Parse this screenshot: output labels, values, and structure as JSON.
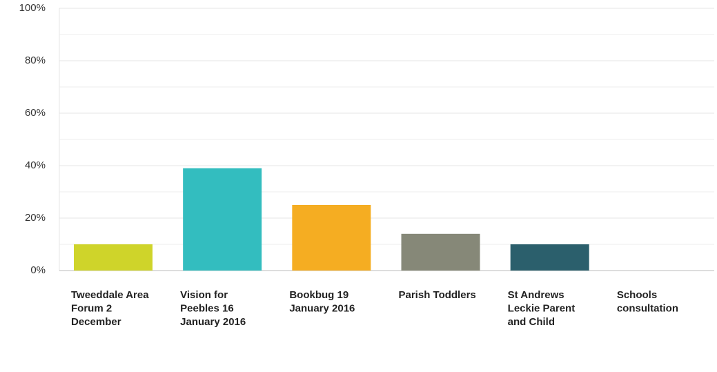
{
  "chart_data": {
    "type": "bar",
    "categories": [
      "Tweeddale Area Forum 2 December",
      "Vision for Peebles 16 January 2016",
      "Bookbug 19 January 2016",
      "Parish Toddlers",
      "St Andrews Leckie Parent and Child",
      "Schools consultation"
    ],
    "values": [
      10,
      39,
      25,
      14,
      10,
      0
    ],
    "colors": [
      "#cfd42a",
      "#33bdbf",
      "#f5ad22",
      "#868878",
      "#2b5f6c",
      "#9b9b9b"
    ],
    "ylim": [
      0,
      100
    ],
    "yticks": [
      {
        "value": 0,
        "label": "0%"
      },
      {
        "value": 20,
        "label": "20%"
      },
      {
        "value": 40,
        "label": "40%"
      },
      {
        "value": 60,
        "label": "60%"
      },
      {
        "value": 80,
        "label": "80%"
      },
      {
        "value": 100,
        "label": "100%"
      }
    ],
    "minor_yticks": [
      10,
      30,
      50,
      70,
      90
    ],
    "grid": true
  }
}
